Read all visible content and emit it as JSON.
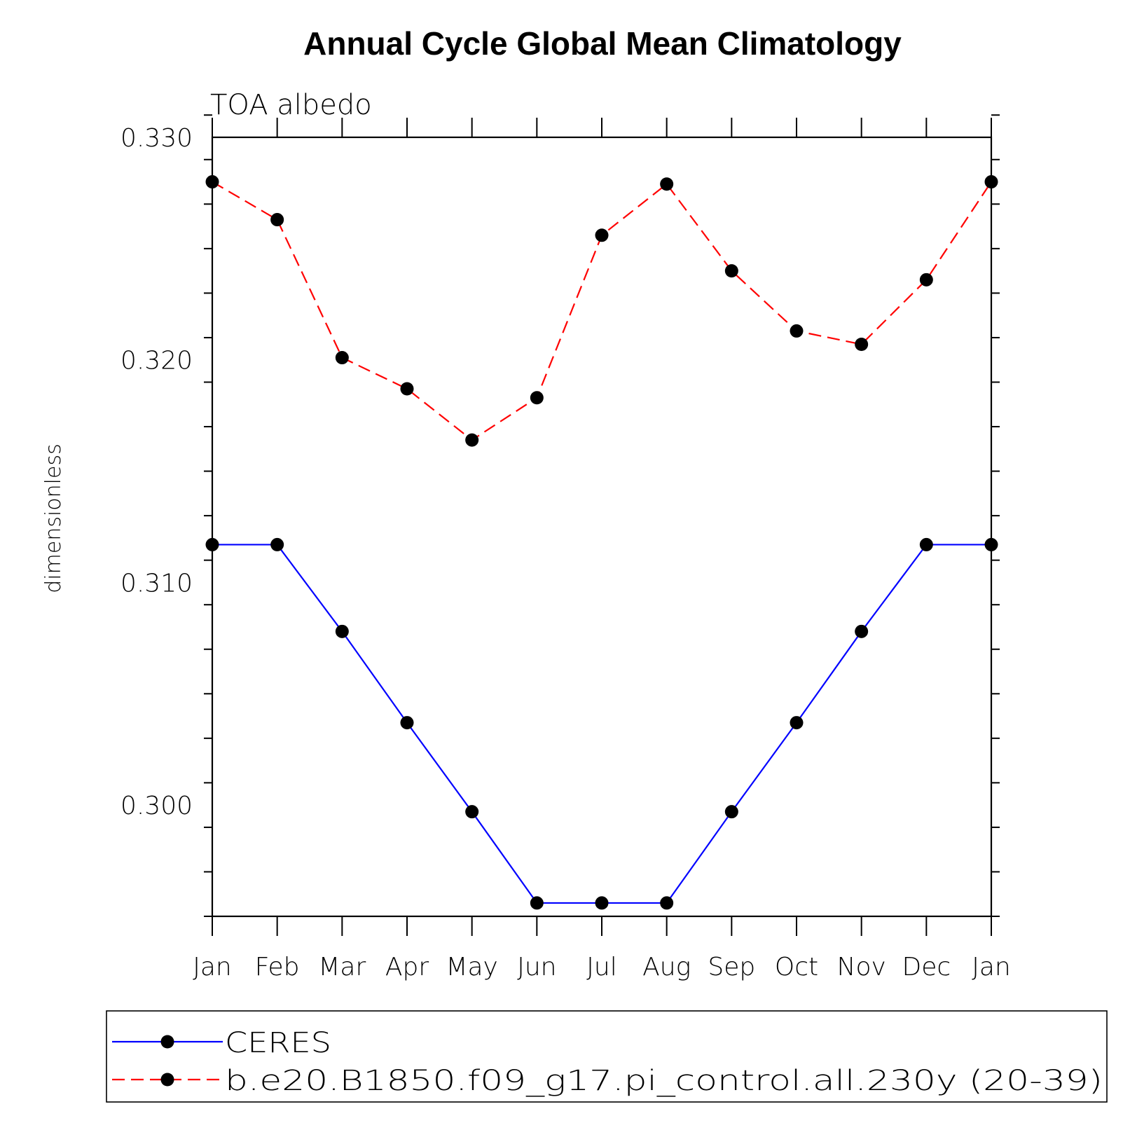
{
  "chart_data": {
    "type": "line",
    "title": "Annual Cycle Global Mean Climatology",
    "subtitle": "TOA albedo",
    "xlabel": "",
    "ylabel": "dimensionless",
    "categories": [
      "Jan",
      "Feb",
      "Mar",
      "Apr",
      "May",
      "Jun",
      "Jul",
      "Aug",
      "Sep",
      "Oct",
      "Nov",
      "Dec",
      "Jan"
    ],
    "ylim": [
      0.295,
      0.33
    ],
    "yticks": [
      0.3,
      0.31,
      0.32,
      0.33
    ],
    "ytick_labels": [
      "0.300",
      "0.310",
      "0.320",
      "0.330"
    ],
    "y_minor_step": 0.002,
    "grid": false,
    "legend_position": "bottom",
    "series": [
      {
        "name": "CERES",
        "color": "#0000ff",
        "line_style": "solid",
        "marker": "filled-circle",
        "values": [
          0.3117,
          0.3117,
          0.3078,
          0.3037,
          0.2997,
          0.2956,
          0.2956,
          0.2956,
          0.2997,
          0.3037,
          0.3078,
          0.3117,
          0.3117
        ]
      },
      {
        "name": "b.e20.B1850.f09_g17.pi_control.all.230y (20-39)",
        "color": "#ff0000",
        "line_style": "dashed",
        "marker": "filled-circle",
        "values": [
          0.328,
          0.3263,
          0.3201,
          0.3187,
          0.3164,
          0.3183,
          0.3256,
          0.3279,
          0.324,
          0.3213,
          0.3207,
          0.3236,
          0.328
        ]
      }
    ]
  }
}
